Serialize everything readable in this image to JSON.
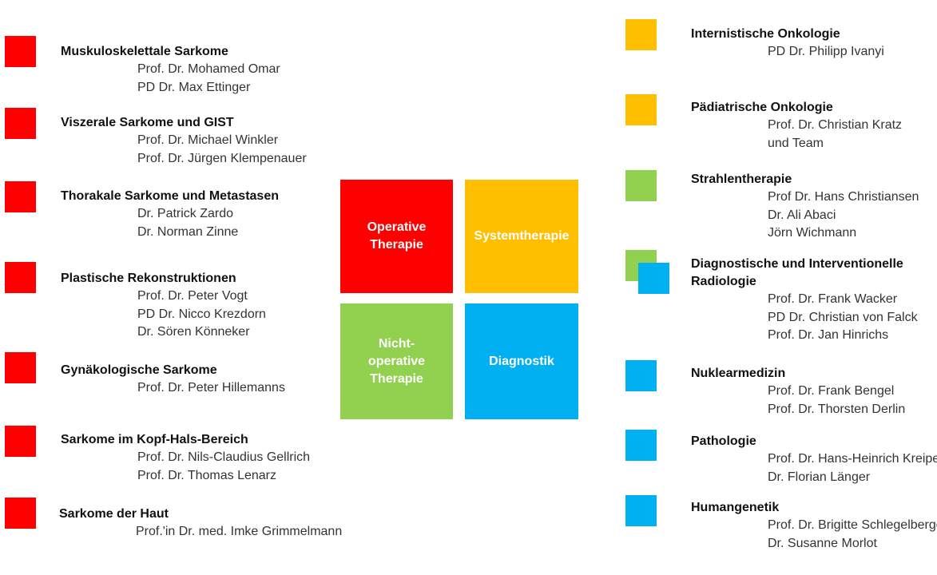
{
  "colors": {
    "red": "#ff0000",
    "orange": "#ffbf00",
    "green": "#92d050",
    "blue": "#00b0f0"
  },
  "center": {
    "operative": "Operative\nTherapie",
    "system": "Systemtherapie",
    "nonoperative": "Nicht-\noperative\nTherapie",
    "diagnostik": "Diagnostik"
  },
  "left": [
    {
      "title": "Muskuloskelettale Sarkome",
      "color": "red",
      "names": [
        "Prof. Dr. Mohamed Omar",
        "PD Dr. Max Ettinger"
      ]
    },
    {
      "title": "Viszerale Sarkome und  GIST",
      "color": "red",
      "names": [
        "Prof. Dr. Michael Winkler",
        "Prof. Dr. Jürgen Klempenauer"
      ]
    },
    {
      "title": "Thorakale Sarkome und Metastasen",
      "color": "red",
      "names": [
        "Dr. Patrick Zardo",
        "Dr. Norman Zinne"
      ]
    },
    {
      "title": "Plastische Rekonstruktionen",
      "color": "red",
      "names": [
        "Prof. Dr. Peter Vogt",
        "PD Dr. Nicco Krezdorn",
        "Dr. Sören Könneker"
      ]
    },
    {
      "title": "Gynäkologische Sarkome",
      "color": "red",
      "names": [
        "Prof. Dr. Peter Hillemanns"
      ]
    },
    {
      "title": "Sarkome im Kopf-Hals-Bereich",
      "color": "red",
      "names": [
        "Prof. Dr. Nils-Claudius Gellrich",
        "Prof. Dr. Thomas Lenarz"
      ]
    },
    {
      "title": "Sarkome der Haut",
      "color": "red",
      "names": [
        "Prof.'in Dr. med. Imke Grimmelmann"
      ]
    }
  ],
  "right": [
    {
      "title": "Internistische Onkologie",
      "color": "orange",
      "names": [
        "PD Dr. Philipp Ivanyi"
      ]
    },
    {
      "title": "Pädiatrische Onkologie",
      "color": "orange",
      "names": [
        "Prof. Dr. Christian Kratz",
        "und Team"
      ]
    },
    {
      "title": "Strahlentherapie",
      "color": "green",
      "names": [
        "Prof Dr. Hans Christiansen",
        "Dr. Ali Abaci",
        "Jörn Wichmann"
      ]
    },
    {
      "title": "Diagnostische und  Interventionelle",
      "title2": "Radiologie",
      "color": "green+blue",
      "names": [
        "Prof. Dr. Frank Wacker",
        "PD Dr.  Christian von Falck",
        "Prof. Dr. Jan Hinrichs"
      ]
    },
    {
      "title": "Nuklearmedizin",
      "color": "blue",
      "names": [
        "Prof. Dr. Frank Bengel",
        "Prof. Dr. Thorsten Derlin"
      ]
    },
    {
      "title": "Pathologie",
      "color": "blue",
      "names": [
        "Prof. Dr. Hans-Heinrich Kreipe",
        "Dr. Florian Länger"
      ]
    },
    {
      "title": "Humangenetik",
      "color": "blue",
      "names": [
        "Prof. Dr. Brigitte Schlegelberger",
        "Dr. Susanne Morlot"
      ]
    }
  ]
}
